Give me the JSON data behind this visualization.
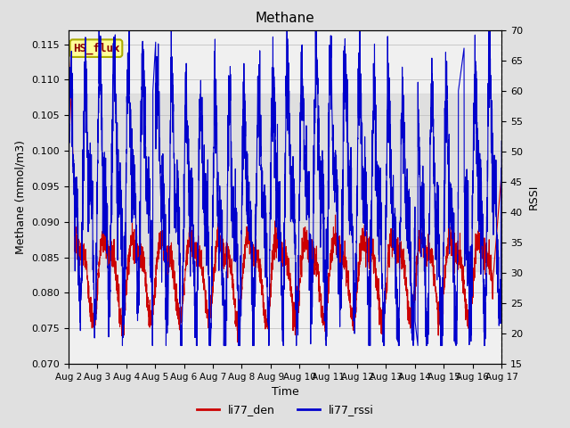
{
  "title": "Methane",
  "ylabel_left": "Methane (mmol/m3)",
  "ylabel_right": "RSSI",
  "xlabel": "Time",
  "ylim_left": [
    0.07,
    0.117
  ],
  "ylim_right": [
    15,
    70
  ],
  "annotation_text": "HS_flux",
  "annotation_color": "#8B0000",
  "annotation_bg": "#FFFF99",
  "annotation_border": "#AAAA00",
  "line_red_color": "#CC0000",
  "line_blue_color": "#0000CC",
  "background_outer": "#E0E0E0",
  "background_inner": "#F0F0F0",
  "legend_red_label": "li77_den",
  "legend_blue_label": "li77_rssi",
  "x_tick_labels": [
    "Aug 2",
    "Aug 3",
    "Aug 4",
    "Aug 5",
    "Aug 6",
    "Aug 7",
    "Aug 8",
    "Aug 9",
    "Aug 10",
    "Aug 11",
    "Aug 12",
    "Aug 13",
    "Aug 14",
    "Aug 15",
    "Aug 16",
    "Aug 17"
  ],
  "left_ticks": [
    0.07,
    0.075,
    0.08,
    0.085,
    0.09,
    0.095,
    0.1,
    0.105,
    0.11,
    0.115
  ],
  "right_ticks": [
    15,
    20,
    25,
    30,
    35,
    40,
    45,
    50,
    55,
    60,
    65,
    70
  ],
  "num_points": 3000
}
